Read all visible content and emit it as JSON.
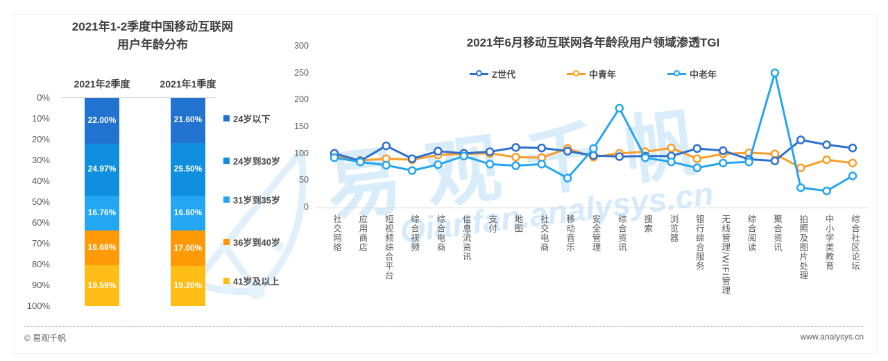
{
  "left_chart": {
    "title_line1": "2021年1-2季度中国移动互联网",
    "title_line2": "用户年龄分布"
  },
  "right_chart": {
    "title": "2021年6月移动互联网各年龄段用户领域渗透TGI"
  },
  "watermark": {
    "brand": "易观千帆",
    "url": "Qianfan.analysys.cn"
  },
  "footer": {
    "copyright": "© 易观千帆",
    "site": "www.analysys.cn"
  },
  "chart_data": [
    {
      "type": "bar",
      "subtype": "stacked-column-percent",
      "title": "2021年1-2季度中国移动互联网用户年龄分布",
      "categories": [
        "2021年2季度",
        "2021年1季度"
      ],
      "series": [
        {
          "name": "24岁以下",
          "color": "#2173CF",
          "values": [
            22.0,
            21.6
          ]
        },
        {
          "name": "24岁到30岁",
          "color": "#108FDE",
          "values": [
            24.97,
            25.5
          ]
        },
        {
          "name": "31岁到35岁",
          "color": "#23A7F3",
          "values": [
            16.76,
            16.6
          ]
        },
        {
          "name": "36岁到40岁",
          "color": "#FD9A05",
          "values": [
            16.68,
            17.0
          ]
        },
        {
          "name": "41岁及以上",
          "color": "#FEBE17",
          "values": [
            19.59,
            19.2
          ]
        }
      ],
      "y_ticks": [
        "0%",
        "10%",
        "20%",
        "30%",
        "40%",
        "50%",
        "60%",
        "70%",
        "80%",
        "90%",
        "100%"
      ],
      "ylim": [
        0,
        100
      ],
      "value_label_format": "0.00%",
      "legend_position": "right",
      "grid": false
    },
    {
      "type": "line",
      "title": "2021年6月移动互联网各年龄段用户领域渗透TGI",
      "categories": [
        "社交网络",
        "应用商店",
        "短视频综合平台",
        "综合视频",
        "综合电商",
        "信息流资讯",
        "支付",
        "地图",
        "社交电商",
        "移动音乐",
        "安全管理",
        "综合资讯",
        "搜索",
        "浏览器",
        "银行综合服务",
        "无线管理/WIFI管理",
        "综合阅读",
        "聚合资讯",
        "拍照及图片处理",
        "中小学类教育",
        "综合社区论坛"
      ],
      "series": [
        {
          "name": "Z世代",
          "color": "#2D6FCE",
          "values": [
            101,
            87,
            115,
            91,
            105,
            101,
            104,
            112,
            111,
            105,
            97,
            95,
            96,
            96,
            110,
            106,
            90,
            87,
            126,
            117,
            111
          ]
        },
        {
          "name": "中青年",
          "color": "#FB9E28",
          "values": [
            97,
            88,
            91,
            89,
            98,
            100,
            101,
            94,
            93,
            110,
            94,
            101,
            104,
            111,
            91,
            100,
            102,
            100,
            74,
            89,
            83
          ]
        },
        {
          "name": "中老年",
          "color": "#25A5F0",
          "values": [
            93,
            85,
            79,
            69,
            80,
            96,
            81,
            78,
            81,
            55,
            110,
            185,
            93,
            85,
            74,
            83,
            85,
            251,
            37,
            31,
            59
          ]
        }
      ],
      "y_ticks": [
        0,
        50,
        100,
        150,
        200,
        250,
        300
      ],
      "ylim": [
        0,
        300
      ],
      "legend_position": "top-center",
      "grid": false,
      "marker": "hollow-circle"
    }
  ]
}
